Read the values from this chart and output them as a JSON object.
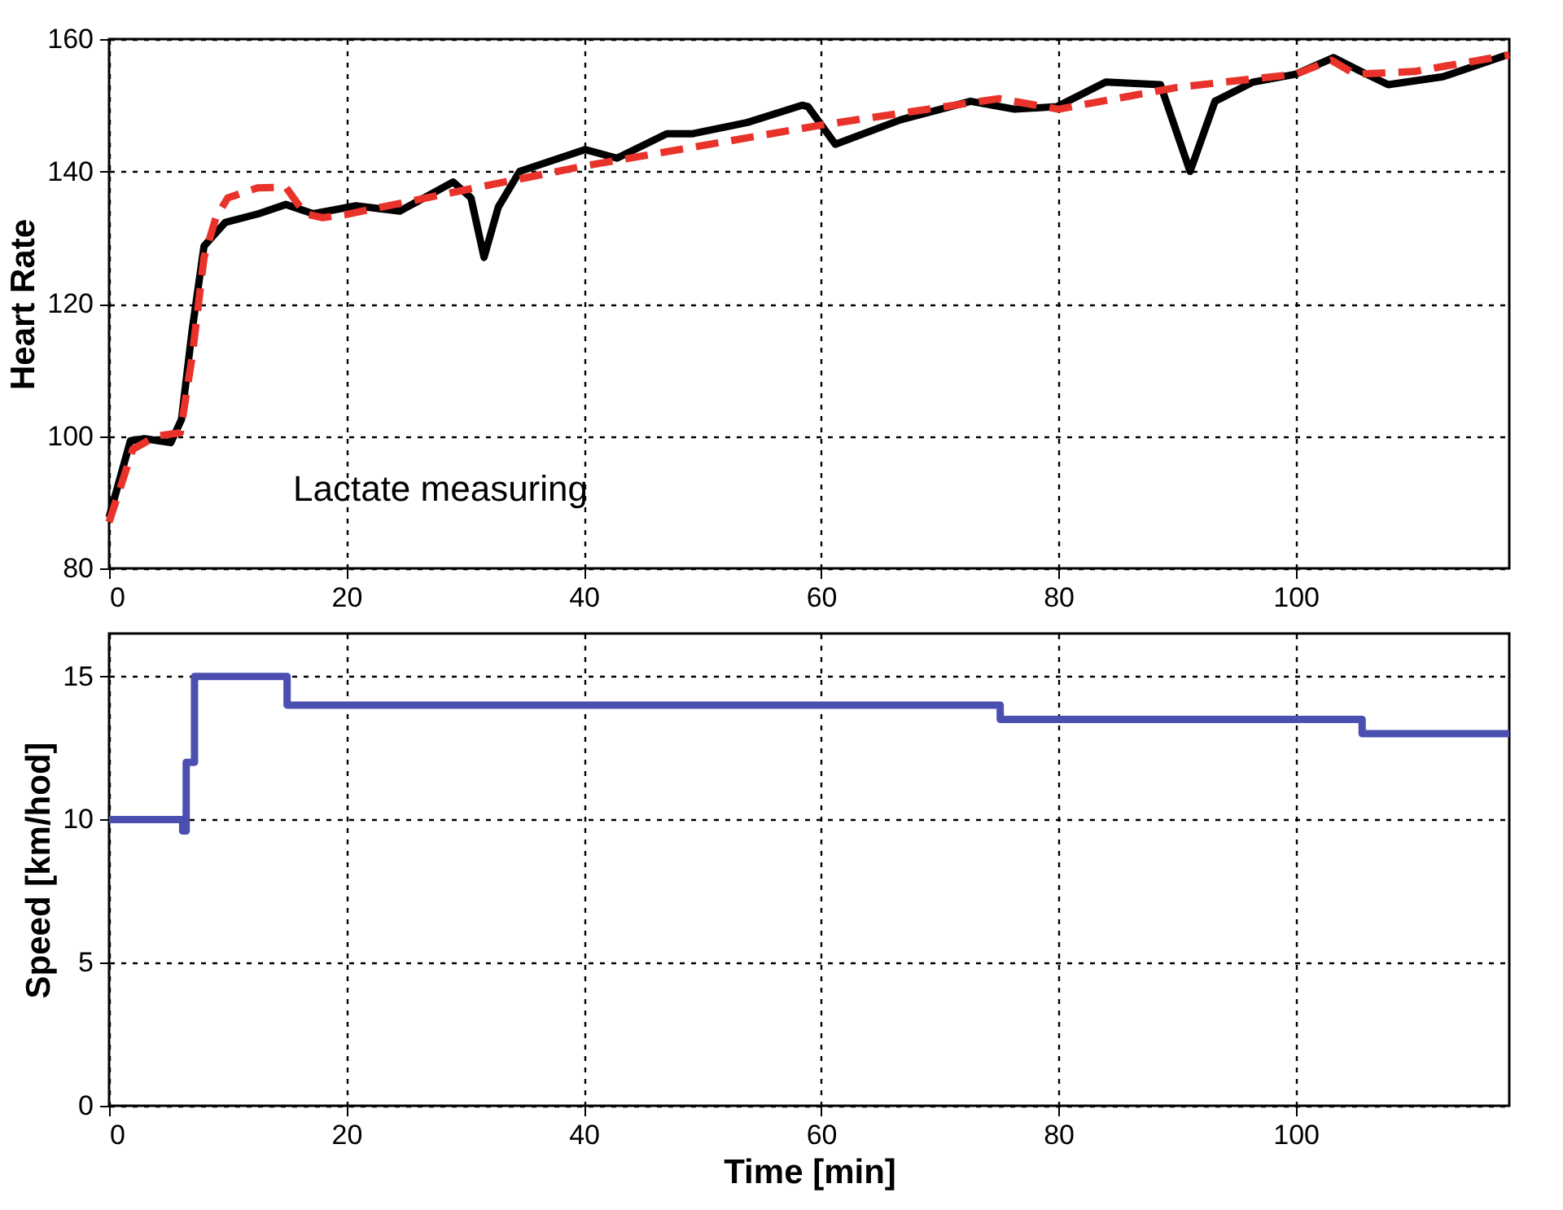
{
  "chart_data": [
    {
      "type": "line",
      "ylabel": "Heart Rate",
      "xlim": [
        0,
        118
      ],
      "xticks": [
        0,
        20,
        40,
        60,
        80,
        100
      ],
      "ylim": [
        80,
        160
      ],
      "yticks": [
        80,
        100,
        120,
        140,
        160
      ],
      "grid": true,
      "annotations": [
        "Lactate measuring"
      ],
      "series": [
        {
          "color": "#000000",
          "line_style": "solid",
          "x": [
            0,
            1.8,
            3,
            5.2,
            6.1,
            7,
            8,
            9.8,
            12.6,
            14.9,
            17.2,
            20.8,
            24.5,
            29,
            30.5,
            31.6,
            32.8,
            34.6,
            40.1,
            42.8,
            47,
            49.2,
            53.8,
            58.4,
            58.9,
            61.2,
            66.7,
            72.6,
            76.3,
            79.9,
            84,
            88.6,
            91.1,
            93.2,
            96.4,
            100,
            103.2,
            105.5,
            107.8,
            112.4,
            117.8
          ],
          "values": [
            87.7,
            99.3,
            99.6,
            99,
            102.5,
            116,
            128.7,
            132.3,
            133.6,
            135,
            133.6,
            134.8,
            134,
            138.4,
            136,
            127,
            134.6,
            140,
            143.3,
            142,
            145.7,
            145.7,
            147.4,
            150,
            149.8,
            144.1,
            147.8,
            150.6,
            149.4,
            149.8,
            153.5,
            153.1,
            140,
            150.6,
            153.5,
            154.7,
            157.2,
            155.1,
            153.1,
            154.3,
            157.6
          ]
        },
        {
          "color": "#e8322a",
          "line_style": "dashed",
          "x": [
            0,
            2,
            4,
            6,
            7,
            8,
            9,
            10,
            12.5,
            14.9,
            16.5,
            18,
            20,
            30,
            40,
            60,
            75,
            80,
            90,
            100,
            103,
            105,
            110,
            118
          ],
          "values": [
            87,
            98,
            100,
            100.5,
            112,
            127,
            133,
            136,
            137.5,
            137.6,
            133.6,
            133,
            133.5,
            137.2,
            140.8,
            147,
            151,
            149.4,
            152.7,
            154.7,
            156.8,
            154.7,
            155.1,
            157.6
          ]
        }
      ]
    },
    {
      "type": "step",
      "xlabel": "Time [min]",
      "ylabel": "Speed [km/hod]",
      "xlim": [
        0,
        118
      ],
      "xticks": [
        0,
        20,
        40,
        60,
        80,
        100
      ],
      "ylim": [
        0,
        16.5
      ],
      "yticks": [
        0,
        5,
        10,
        15
      ],
      "grid": true,
      "series": [
        {
          "color": "#4a4fb0",
          "line_style": "solid",
          "x": [
            0,
            6.2,
            6.5,
            7.2,
            15.0,
            75.1,
            105.6,
            118
          ],
          "values": [
            10,
            9.6,
            12,
            15,
            14,
            13.5,
            13,
            13
          ]
        }
      ]
    }
  ]
}
